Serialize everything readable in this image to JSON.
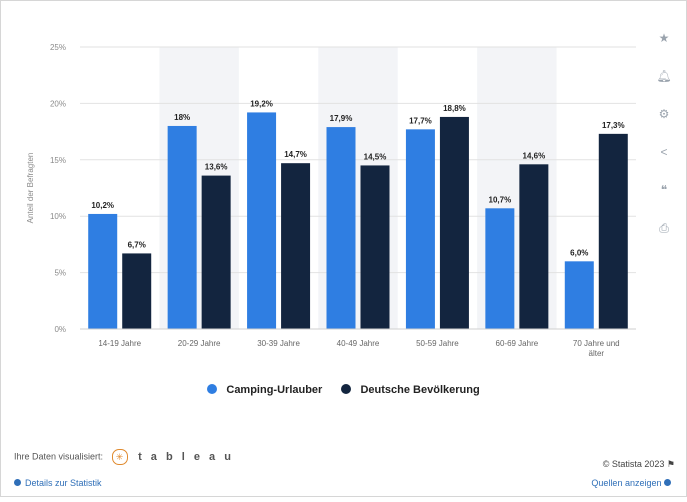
{
  "chart_data": {
    "type": "bar",
    "title": "",
    "xlabel": "",
    "ylabel": "Anteil der Befragten",
    "ylim": [
      0,
      25
    ],
    "yticks": [
      "0%",
      "5%",
      "10%",
      "15%",
      "20%",
      "25%"
    ],
    "categories": [
      "14-19 Jahre",
      "20-29 Jahre",
      "30-39 Jahre",
      "40-49 Jahre",
      "50-59 Jahre",
      "60-69 Jahre",
      "70 Jahre und älter"
    ],
    "series": [
      {
        "name": "Camping-Urlauber",
        "color": "#2f7ee2",
        "values": [
          10.2,
          18.0,
          19.2,
          17.9,
          17.7,
          10.7,
          6.0
        ],
        "labels": [
          "10,2%",
          "18%",
          "19,2%",
          "17,9%",
          "17,7%",
          "10,7%",
          "6,0%"
        ]
      },
      {
        "name": "Deutsche Bevölkerung",
        "color": "#13253f",
        "values": [
          6.7,
          13.6,
          14.7,
          14.5,
          18.8,
          14.6,
          17.3
        ],
        "labels": [
          "6,7%",
          "13,6%",
          "14,7%",
          "14,5%",
          "18,8%",
          "14,6%",
          "17,3%"
        ]
      }
    ],
    "grid": true,
    "legend": "bottom-center"
  },
  "footer": {
    "visualized_by": "Ihre Daten visualisiert:",
    "tableau": "t a b l e a u",
    "copyright": "© Statista 2023",
    "details_link": "Details zur Statistik",
    "source_link": "Quellen anzeigen"
  },
  "toolbar": {
    "icons": [
      "star-icon",
      "bell-icon",
      "gear-icon",
      "share-icon",
      "quote-icon",
      "print-icon"
    ]
  }
}
